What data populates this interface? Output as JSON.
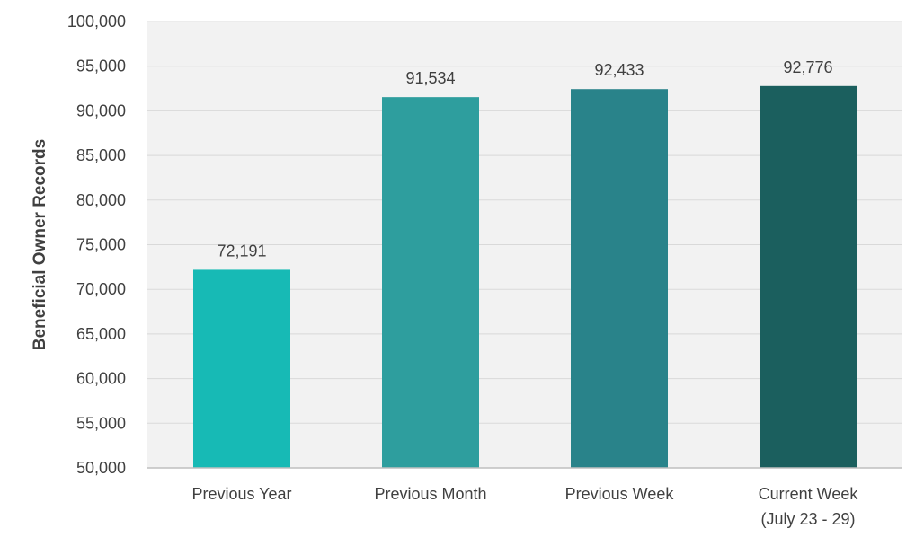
{
  "chart_data": {
    "type": "bar",
    "title": "",
    "xlabel": "",
    "ylabel": "Beneficial Owner Records",
    "ylim": [
      50000,
      100000
    ],
    "yticks": [
      50000,
      55000,
      60000,
      65000,
      70000,
      75000,
      80000,
      85000,
      90000,
      95000,
      100000
    ],
    "ytick_labels": [
      "50,000",
      "55,000",
      "60,000",
      "65,000",
      "70,000",
      "75,000",
      "80,000",
      "85,000",
      "90,000",
      "95,000",
      "100,000"
    ],
    "grid": "horizontal",
    "categories": [
      [
        "Previous Year"
      ],
      [
        "Previous Month"
      ],
      [
        "Previous Week"
      ],
      [
        "Current Week",
        "(July 23 - 29)"
      ]
    ],
    "values": [
      72191,
      91534,
      92433,
      92776
    ],
    "value_labels": [
      "72,191",
      "91,534",
      "92,433",
      "92,776"
    ],
    "bar_colors": [
      "#17BAB5",
      "#2E9E9E",
      "#29838A",
      "#1B5F5E"
    ],
    "plot_background": "#F2F2F2",
    "grid_color": "#D9D9D9",
    "text_color": "#404040"
  }
}
